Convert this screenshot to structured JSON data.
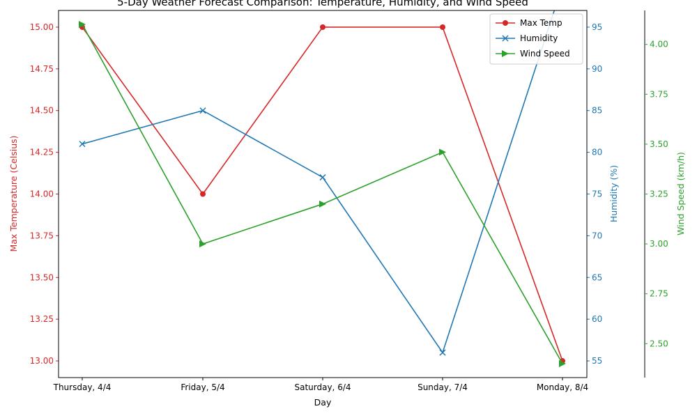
{
  "chart_data": {
    "type": "line",
    "title": "5-Day Weather Forecast Comparison: Temperature, Humidity, and Wind Speed",
    "xlabel": "Day",
    "categories": [
      "Thursday, 4/4",
      "Friday, 5/4",
      "Saturday, 6/4",
      "Sunday, 7/4",
      "Monday, 8/4"
    ],
    "grid": false,
    "legend_position": "top-right",
    "axes": [
      {
        "id": "temp",
        "label": "Max Temperature (Celsius)",
        "side": "left",
        "color": "#d62728",
        "ylim": [
          12.9,
          15.1
        ],
        "ticks": [
          "13.00",
          "13.25",
          "13.50",
          "13.75",
          "14.00",
          "14.25",
          "14.50",
          "14.75",
          "15.00"
        ]
      },
      {
        "id": "humidity",
        "label": "Humidity (%)",
        "side": "right",
        "color": "#1f77b4",
        "ylim": [
          53,
          97
        ],
        "ticks": [
          "55",
          "60",
          "65",
          "70",
          "75",
          "80",
          "85",
          "90",
          "95"
        ]
      },
      {
        "id": "wind",
        "label": "Wind Speed (km/h)",
        "side": "right-outer",
        "color": "#2ca02c",
        "ylim": [
          2.33,
          4.17
        ],
        "ticks": [
          "2.50",
          "2.75",
          "3.00",
          "3.25",
          "3.50",
          "3.75",
          "4.00"
        ]
      }
    ],
    "series": [
      {
        "name": "Max Temp",
        "axis": "temp",
        "color": "#d62728",
        "marker": "circle",
        "values": [
          15,
          14,
          15,
          15,
          13
        ]
      },
      {
        "name": "Humidity",
        "axis": "humidity",
        "color": "#1f77b4",
        "marker": "x",
        "values": [
          81,
          85,
          77,
          56,
          100
        ]
      },
      {
        "name": "Wind Speed",
        "axis": "wind",
        "color": "#2ca02c",
        "marker": "triangle-right",
        "values": [
          4.1,
          3.0,
          3.2,
          3.46,
          2.4
        ]
      }
    ]
  }
}
